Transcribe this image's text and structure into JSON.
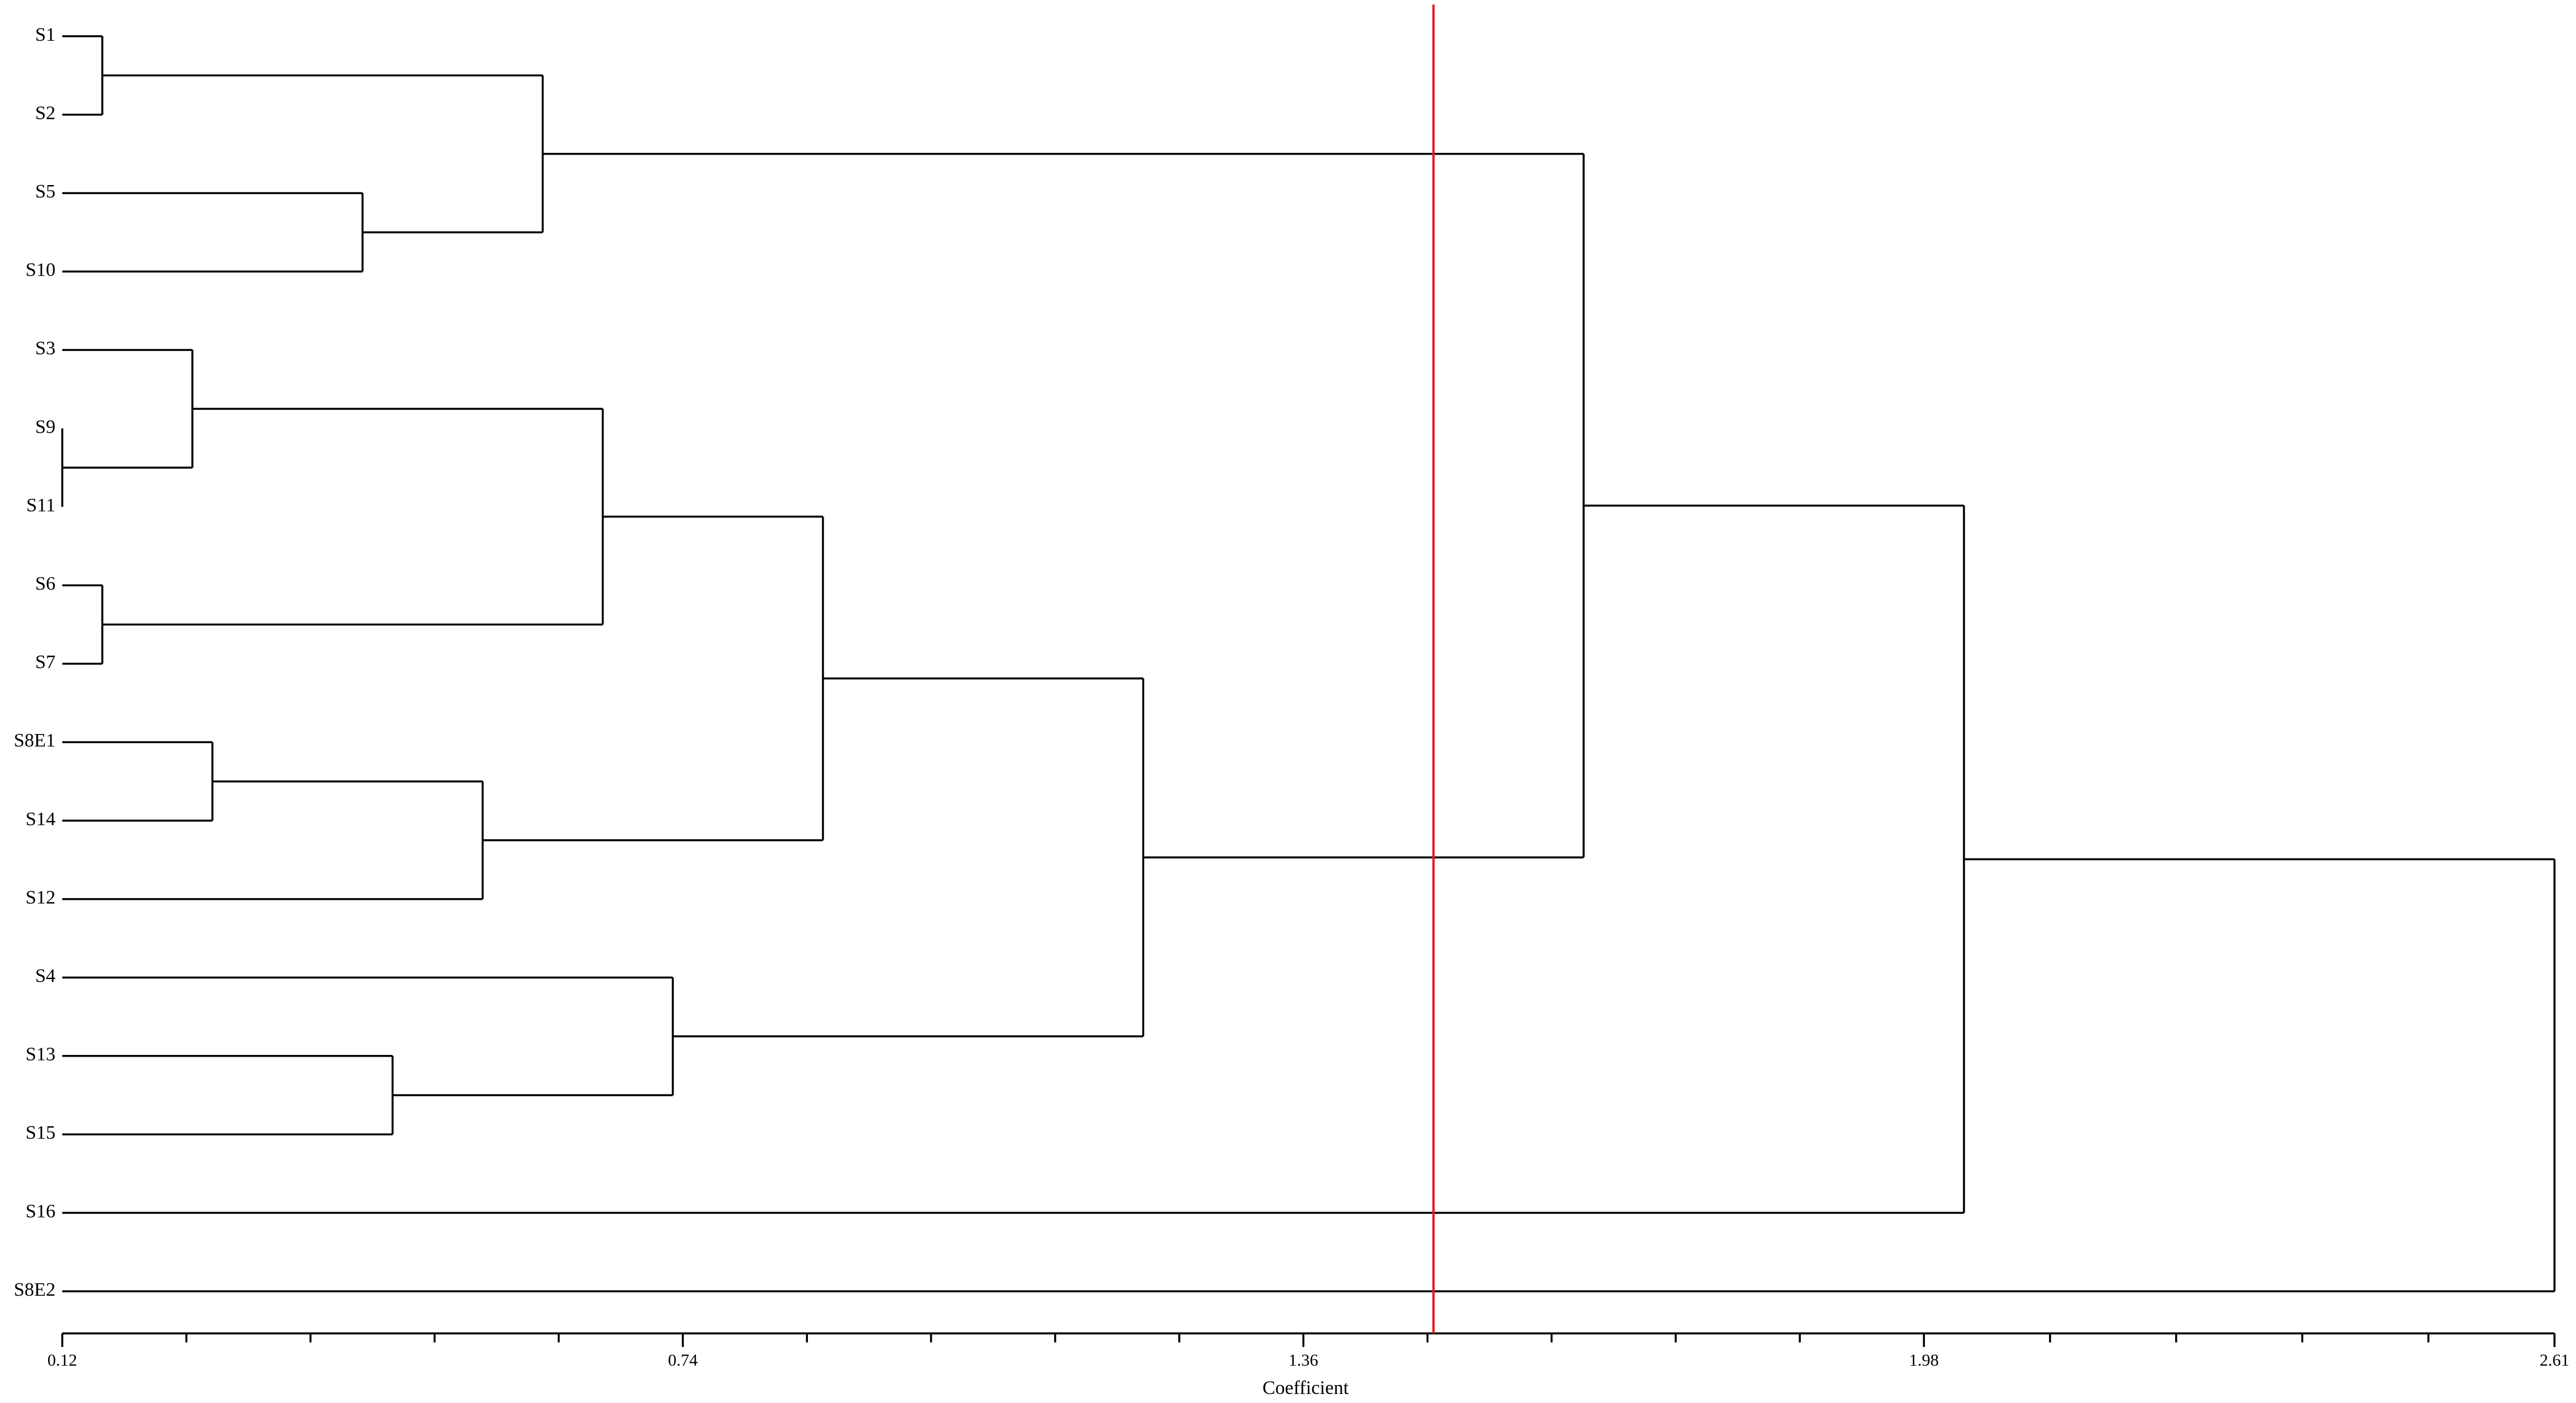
{
  "chart_data": {
    "type": "dendrogram",
    "x_label": "Coefficient",
    "leaves": [
      "S1",
      "S2",
      "S5",
      "S10",
      "S3",
      "S9",
      "S11",
      "S6",
      "S7",
      "S8E1",
      "S14",
      "S12",
      "S4",
      "S13",
      "S15",
      "S16",
      "S8E2"
    ],
    "merges": [
      {
        "children": [
          0,
          1
        ],
        "height": 0.16
      },
      {
        "children": [
          2,
          3
        ],
        "height": 0.42
      },
      {
        "children": [
          17,
          18
        ],
        "height": 0.6
      },
      {
        "children": [
          5,
          6
        ],
        "height": 0.12
      },
      {
        "children": [
          4,
          20
        ],
        "height": 0.25
      },
      {
        "children": [
          7,
          8
        ],
        "height": 0.16
      },
      {
        "children": [
          21,
          22
        ],
        "height": 0.66
      },
      {
        "children": [
          9,
          10
        ],
        "height": 0.27
      },
      {
        "children": [
          24,
          11
        ],
        "height": 0.54
      },
      {
        "children": [
          23,
          25
        ],
        "height": 0.88
      },
      {
        "children": [
          13,
          14
        ],
        "height": 0.45
      },
      {
        "children": [
          12,
          27
        ],
        "height": 0.73
      },
      {
        "children": [
          26,
          28
        ],
        "height": 1.2
      },
      {
        "children": [
          19,
          29
        ],
        "height": 1.64
      },
      {
        "children": [
          30,
          15
        ],
        "height": 2.02
      },
      {
        "children": [
          31,
          16
        ],
        "height": 2.61
      }
    ],
    "color": "#000000",
    "cutoff": 1.49,
    "cutoff_color": "#e31a1c",
    "xlim": [
      0.12,
      2.61
    ],
    "xticks": [
      0.12,
      0.74,
      1.36,
      1.98,
      2.61
    ],
    "minor_xticks": [
      0.244,
      0.368,
      0.492,
      0.616,
      0.864,
      0.988,
      1.112,
      1.236,
      1.484,
      1.608,
      1.732,
      1.856,
      2.106,
      2.232,
      2.358,
      2.484
    ]
  }
}
